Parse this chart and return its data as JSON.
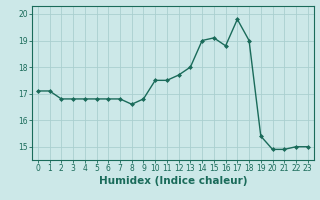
{
  "x": [
    0,
    1,
    2,
    3,
    4,
    5,
    6,
    7,
    8,
    9,
    10,
    11,
    12,
    13,
    14,
    15,
    16,
    17,
    18,
    19,
    20,
    21,
    22,
    23
  ],
  "y": [
    17.1,
    17.1,
    16.8,
    16.8,
    16.8,
    16.8,
    16.8,
    16.8,
    16.6,
    16.8,
    17.5,
    17.5,
    17.7,
    18.0,
    19.0,
    19.1,
    18.8,
    19.8,
    19.0,
    15.4,
    14.9,
    14.9,
    15.0,
    15.0
  ],
  "line_color": "#1a6b5a",
  "marker": "D",
  "marker_size": 2.0,
  "bg_color": "#cce8e8",
  "grid_color": "#aacfcf",
  "xlabel": "Humidex (Indice chaleur)",
  "xlim": [
    -0.5,
    23.5
  ],
  "ylim": [
    14.5,
    20.3
  ],
  "yticks": [
    15,
    16,
    17,
    18,
    19,
    20
  ],
  "xticks": [
    0,
    1,
    2,
    3,
    4,
    5,
    6,
    7,
    8,
    9,
    10,
    11,
    12,
    13,
    14,
    15,
    16,
    17,
    18,
    19,
    20,
    21,
    22,
    23
  ],
  "tick_fontsize": 5.5,
  "xlabel_fontsize": 7.5,
  "linewidth": 1.0
}
